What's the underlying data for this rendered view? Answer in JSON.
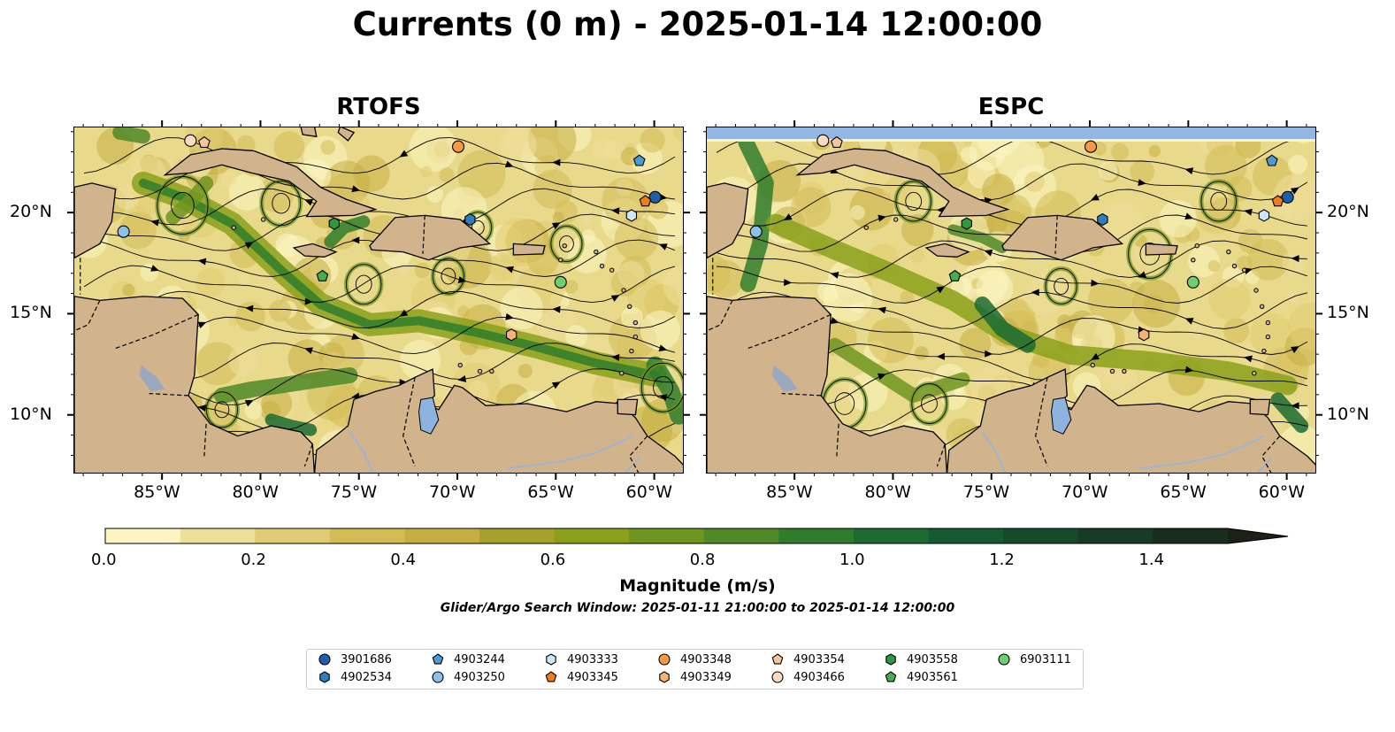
{
  "figure": {
    "title": "Currents (0 m) - 2025-01-14 12:00:00",
    "search_window": "Glider/Argo Search Window: 2025-01-11 21:00:00 to 2025-01-14 12:00:00"
  },
  "panels": [
    {
      "title": "RTOFS"
    },
    {
      "title": "ESPC"
    }
  ],
  "axes": {
    "lon_ticks": [
      "85°W",
      "80°W",
      "75°W",
      "70°W",
      "65°W",
      "60°W"
    ],
    "lat_ticks": [
      "20°N",
      "15°N",
      "10°N"
    ]
  },
  "colorbar": {
    "label": "Magnitude (m/s)",
    "ticks": [
      "0.0",
      "0.2",
      "0.4",
      "0.6",
      "0.8",
      "1.0",
      "1.2",
      "1.4"
    ],
    "colors": [
      "#fbf5c2",
      "#efdf9a",
      "#e1cc73",
      "#d4bc55",
      "#c6ae43",
      "#a8a02a",
      "#8aa01a",
      "#6e9520",
      "#4f8828",
      "#2f7d2c",
      "#1b6b32",
      "#155a30",
      "#164a2b",
      "#183b24",
      "#1a2d1d",
      "#1b2018"
    ]
  },
  "map_colors": {
    "land": "#d2b48c",
    "lake": "#8fb3df",
    "river": "#9db4d4",
    "top_band": "#94b6e2",
    "ocean": "#e8d98b"
  },
  "legend": {
    "items": [
      {
        "label": "3901686",
        "marker": "circle",
        "color": "#1f5ea8"
      },
      {
        "label": "4902534",
        "marker": "hexagon",
        "color": "#2e7ec0"
      },
      {
        "label": "4903244",
        "marker": "pentagon",
        "color": "#4d9ad8"
      },
      {
        "label": "4903250",
        "marker": "circle",
        "color": "#8cc1ea"
      },
      {
        "label": "4903333",
        "marker": "hexagon",
        "color": "#cfe6f7"
      },
      {
        "label": "4903345",
        "marker": "pentagon",
        "color": "#f07d1a"
      },
      {
        "label": "4903348",
        "marker": "circle",
        "color": "#f59a42"
      },
      {
        "label": "4903349",
        "marker": "hexagon",
        "color": "#f7b274"
      },
      {
        "label": "4903354",
        "marker": "pentagon",
        "color": "#f9c498"
      },
      {
        "label": "4903466",
        "marker": "circle",
        "color": "#fcdcc0"
      },
      {
        "label": "4903558",
        "marker": "hexagon",
        "color": "#2f9a3b"
      },
      {
        "label": "4903561",
        "marker": "pentagon",
        "color": "#49ac4e"
      },
      {
        "label": "6903111",
        "marker": "circle",
        "color": "#6fcf6f"
      }
    ]
  },
  "floats": [
    {
      "id": "3901686",
      "lon": -60.0,
      "lat": 20.8
    },
    {
      "id": "4902534",
      "lon": -69.4,
      "lat": 19.7
    },
    {
      "id": "4903244",
      "lon": -60.8,
      "lat": 22.6
    },
    {
      "id": "4903250",
      "lon": -87.0,
      "lat": 19.1
    },
    {
      "id": "4903333",
      "lon": -61.2,
      "lat": 19.9
    },
    {
      "id": "4903345",
      "lon": -60.5,
      "lat": 20.6
    },
    {
      "id": "4903348",
      "lon": -70.0,
      "lat": 23.3
    },
    {
      "id": "4903349",
      "lon": -67.3,
      "lat": 14.0
    },
    {
      "id": "4903354",
      "lon": -82.9,
      "lat": 23.5
    },
    {
      "id": "4903466",
      "lon": -83.6,
      "lat": 23.6
    },
    {
      "id": "4903558",
      "lon": -76.3,
      "lat": 19.5
    },
    {
      "id": "4903561",
      "lon": -76.9,
      "lat": 16.9
    },
    {
      "id": "6903111",
      "lon": -64.8,
      "lat": 16.6
    }
  ]
}
